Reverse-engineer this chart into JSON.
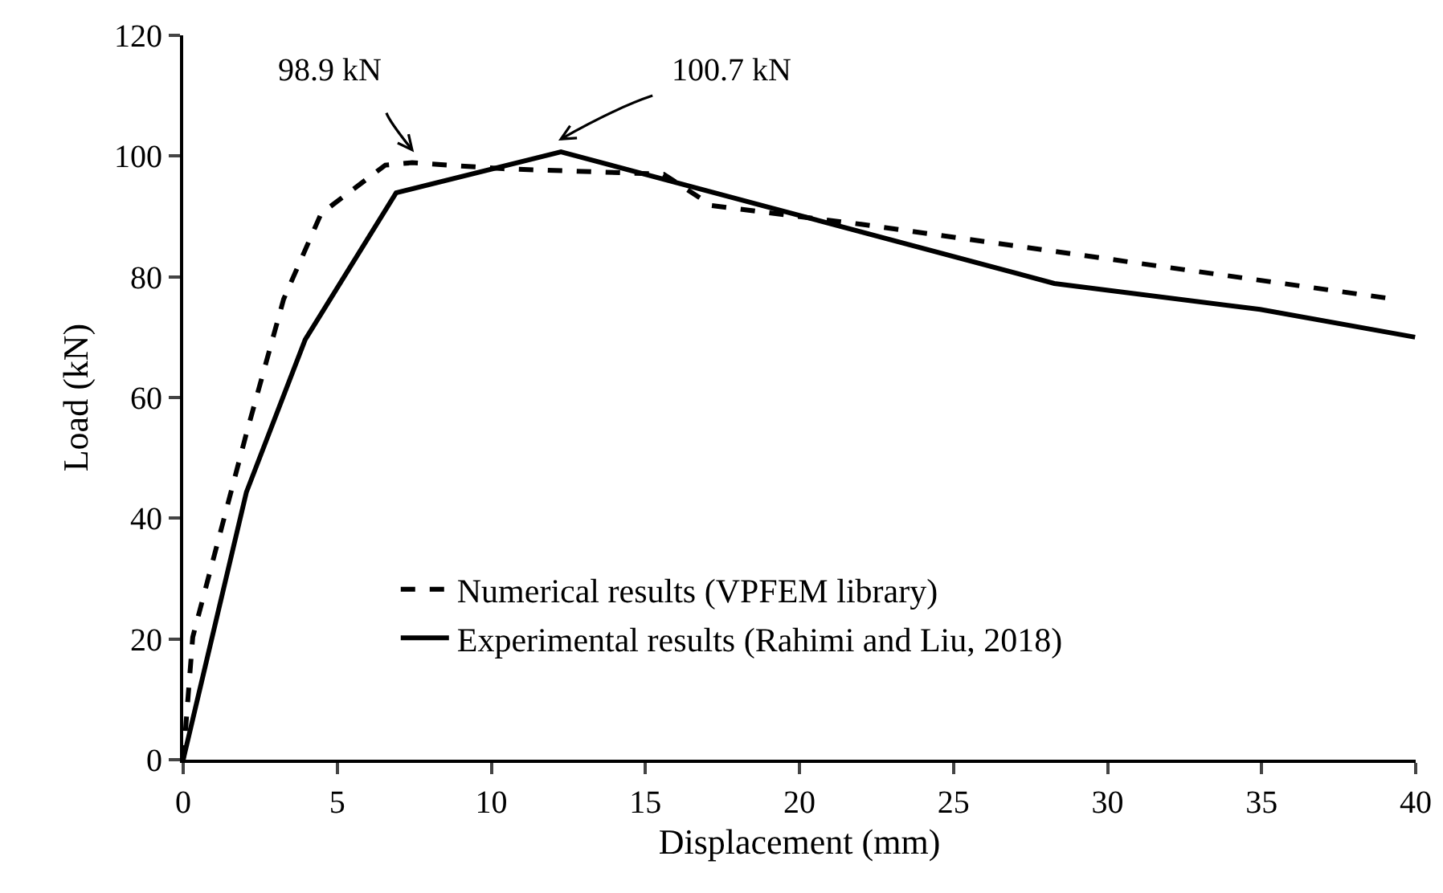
{
  "chart_data": {
    "type": "line",
    "xlabel": "Displacement (mm)",
    "ylabel": "Load (kN)",
    "xlim": [
      0,
      40
    ],
    "xticks": [
      0,
      5,
      10,
      15,
      20,
      25,
      30,
      35,
      40
    ],
    "ylim": [
      0,
      120
    ],
    "yticks": [
      0,
      20,
      40,
      60,
      80,
      100,
      120
    ],
    "grid": false,
    "legend": "bottom",
    "marker": "none",
    "series": [
      {
        "name": "Numerical results (VPFEM library)",
        "color": "#000000",
        "line_style": "dashed",
        "x": [
          0,
          0.31,
          2.05,
          3.26,
          4.48,
          6.56,
          7.43,
          10.38,
          15.59,
          17.15,
          22.0,
          39.03
        ],
        "values": [
          0,
          20.3,
          54,
          76.3,
          90.5,
          98.5,
          98.9,
          97.9,
          97.0,
          91.8,
          88.7,
          76.5
        ]
      },
      {
        "name": "Experimental results (Rahimi and Liu, 2018)",
        "color": "#000000",
        "line_style": "solid",
        "x": [
          0,
          2.05,
          3.96,
          6.91,
          12.26,
          28.27,
          34.95,
          39.98
        ],
        "values": [
          0,
          44.3,
          69.6,
          93.9,
          100.7,
          78.9,
          74.6,
          70.0
        ]
      }
    ],
    "annotations": [
      {
        "text": "98.9 kN",
        "x": 7.43,
        "y": 98.9
      },
      {
        "text": "100.7 kN",
        "x": 12.26,
        "y": 100.7
      }
    ]
  }
}
